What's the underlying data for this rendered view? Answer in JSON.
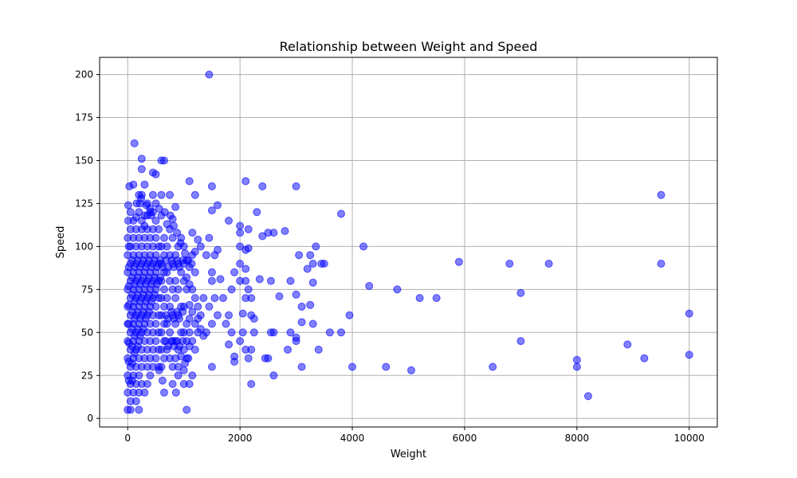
{
  "chart_data": {
    "type": "scatter",
    "title": "Relationship between Weight and Speed",
    "xlabel": "Weight",
    "ylabel": "Speed",
    "xlim": [
      -500,
      10500
    ],
    "ylim": [
      -5,
      210
    ],
    "xticks": [
      0,
      2000,
      4000,
      6000,
      8000,
      10000
    ],
    "yticks": [
      0,
      25,
      50,
      75,
      100,
      125,
      150,
      175,
      200
    ],
    "grid": true,
    "marker_color": "#0000ff",
    "marker_alpha": 0.5,
    "points": [
      [
        1450,
        200
      ],
      [
        120,
        160
      ],
      [
        250,
        151
      ],
      [
        600,
        150
      ],
      [
        650,
        150
      ],
      [
        250,
        145
      ],
      [
        450,
        143
      ],
      [
        500,
        142
      ],
      [
        1100,
        138
      ],
      [
        2100,
        138
      ],
      [
        30,
        135
      ],
      [
        1500,
        135
      ],
      [
        2400,
        135
      ],
      [
        3000,
        135
      ],
      [
        100,
        136
      ],
      [
        300,
        136
      ],
      [
        200,
        130
      ],
      [
        250,
        130
      ],
      [
        450,
        130
      ],
      [
        600,
        130
      ],
      [
        750,
        130
      ],
      [
        1200,
        130
      ],
      [
        9500,
        130
      ],
      [
        220,
        125
      ],
      [
        350,
        125
      ],
      [
        500,
        125
      ],
      [
        1600,
        124
      ],
      [
        10,
        124
      ],
      [
        850,
        123
      ],
      [
        1500,
        121
      ],
      [
        2300,
        120
      ],
      [
        3800,
        119
      ],
      [
        150,
        117
      ],
      [
        300,
        118
      ],
      [
        400,
        120
      ],
      [
        600,
        118
      ],
      [
        800,
        116
      ],
      [
        1800,
        115
      ],
      [
        10,
        115
      ],
      [
        700,
        113
      ],
      [
        2000,
        112
      ],
      [
        2150,
        110
      ],
      [
        2500,
        108
      ],
      [
        2600,
        108
      ],
      [
        2800,
        109
      ],
      [
        1150,
        108
      ],
      [
        2000,
        108
      ],
      [
        2400,
        106
      ],
      [
        1450,
        105
      ],
      [
        4200,
        100
      ],
      [
        3350,
        100
      ],
      [
        2000,
        100
      ],
      [
        2100,
        98
      ],
      [
        2150,
        99
      ],
      [
        1600,
        98
      ],
      [
        1550,
        95
      ],
      [
        1400,
        95
      ],
      [
        3050,
        95
      ],
      [
        3250,
        95
      ],
      [
        3300,
        90
      ],
      [
        3450,
        90
      ],
      [
        3500,
        90
      ],
      [
        5900,
        91
      ],
      [
        6800,
        90
      ],
      [
        7500,
        90
      ],
      [
        9500,
        90
      ],
      [
        2000,
        90
      ],
      [
        2100,
        87
      ],
      [
        3200,
        87
      ],
      [
        1900,
        85
      ],
      [
        1500,
        85
      ],
      [
        1650,
        81
      ],
      [
        1500,
        80
      ],
      [
        2000,
        80
      ],
      [
        2100,
        80
      ],
      [
        2350,
        81
      ],
      [
        2550,
        80
      ],
      [
        2900,
        80
      ],
      [
        3300,
        79
      ],
      [
        4300,
        77
      ],
      [
        4800,
        75
      ],
      [
        1850,
        75
      ],
      [
        2150,
        75
      ],
      [
        3000,
        72
      ],
      [
        7000,
        73
      ],
      [
        5200,
        70
      ],
      [
        5500,
        70
      ],
      [
        2700,
        71
      ],
      [
        2100,
        70
      ],
      [
        2200,
        70
      ],
      [
        1550,
        70
      ],
      [
        1700,
        70
      ],
      [
        1350,
        70
      ],
      [
        1250,
        65
      ],
      [
        3100,
        65
      ],
      [
        3250,
        66
      ],
      [
        2050,
        61
      ],
      [
        1450,
        65
      ],
      [
        2200,
        60
      ],
      [
        3950,
        60
      ],
      [
        1600,
        60
      ],
      [
        1800,
        60
      ],
      [
        2250,
        58
      ],
      [
        3100,
        56
      ],
      [
        3300,
        55
      ],
      [
        1500,
        55
      ],
      [
        1750,
        55
      ],
      [
        1850,
        50
      ],
      [
        2050,
        50
      ],
      [
        2250,
        50
      ],
      [
        2550,
        50
      ],
      [
        2600,
        50
      ],
      [
        2900,
        50
      ],
      [
        3600,
        50
      ],
      [
        3800,
        50
      ],
      [
        3000,
        47
      ],
      [
        3000,
        45
      ],
      [
        2000,
        45
      ],
      [
        1800,
        43
      ],
      [
        7000,
        45
      ],
      [
        8900,
        43
      ],
      [
        2850,
        40
      ],
      [
        2100,
        40
      ],
      [
        2200,
        40
      ],
      [
        3400,
        40
      ],
      [
        1900,
        36
      ],
      [
        2150,
        35
      ],
      [
        2450,
        35
      ],
      [
        2500,
        35
      ],
      [
        1900,
        33
      ],
      [
        9200,
        35
      ],
      [
        8000,
        34
      ],
      [
        1500,
        30
      ],
      [
        3100,
        30
      ],
      [
        4000,
        30
      ],
      [
        4600,
        30
      ],
      [
        5050,
        28
      ],
      [
        6500,
        30
      ],
      [
        8000,
        30
      ],
      [
        2600,
        25
      ],
      [
        2200,
        20
      ],
      [
        8200,
        13
      ],
      [
        10000,
        61
      ],
      [
        10000,
        37
      ],
      [
        1050,
        5
      ],
      [
        50,
        5
      ],
      [
        200,
        5
      ],
      [
        1100,
        20
      ],
      [
        1150,
        25
      ],
      [
        800,
        20
      ],
      [
        650,
        15
      ],
      [
        1000,
        20
      ],
      [
        1000,
        28
      ],
      [
        1050,
        35
      ],
      [
        900,
        30
      ],
      [
        950,
        36
      ],
      [
        1000,
        40
      ],
      [
        1100,
        42
      ],
      [
        1150,
        45
      ],
      [
        1200,
        40
      ],
      [
        1050,
        45
      ],
      [
        1000,
        50
      ],
      [
        1100,
        50
      ],
      [
        1200,
        55
      ],
      [
        1250,
        50
      ],
      [
        1300,
        52
      ],
      [
        1350,
        48
      ],
      [
        1400,
        50
      ],
      [
        1050,
        55
      ],
      [
        1100,
        58
      ],
      [
        1150,
        62
      ],
      [
        1250,
        58
      ],
      [
        1300,
        60
      ],
      [
        1000,
        65
      ],
      [
        1100,
        66
      ],
      [
        1200,
        70
      ],
      [
        1050,
        75
      ],
      [
        1100,
        78
      ],
      [
        1150,
        75
      ],
      [
        1000,
        80
      ],
      [
        1050,
        82
      ],
      [
        1200,
        85
      ],
      [
        1100,
        88
      ],
      [
        1000,
        90
      ],
      [
        1050,
        92
      ],
      [
        1150,
        95
      ],
      [
        1200,
        97
      ],
      [
        1300,
        100
      ],
      [
        1250,
        104
      ],
      [
        1000,
        100
      ],
      [
        950,
        105
      ],
      [
        900,
        100
      ],
      [
        850,
        95
      ],
      [
        900,
        90
      ],
      [
        950,
        85
      ],
      [
        850,
        80
      ],
      [
        900,
        75
      ],
      [
        850,
        70
      ],
      [
        950,
        65
      ],
      [
        900,
        60
      ],
      [
        850,
        55
      ],
      [
        950,
        50
      ],
      [
        850,
        45
      ],
      [
        900,
        40
      ],
      [
        850,
        35
      ],
      [
        800,
        30
      ],
      [
        900,
        25
      ],
      [
        750,
        35
      ],
      [
        700,
        40
      ],
      [
        800,
        45
      ],
      [
        750,
        50
      ],
      [
        700,
        55
      ],
      [
        800,
        60
      ],
      [
        750,
        65
      ],
      [
        700,
        70
      ],
      [
        800,
        75
      ],
      [
        750,
        80
      ],
      [
        700,
        85
      ],
      [
        800,
        90
      ],
      [
        750,
        95
      ],
      [
        700,
        100
      ],
      [
        800,
        105
      ],
      [
        750,
        110
      ],
      [
        650,
        105
      ],
      [
        600,
        100
      ],
      [
        650,
        95
      ],
      [
        600,
        90
      ],
      [
        650,
        85
      ],
      [
        600,
        80
      ],
      [
        650,
        75
      ],
      [
        600,
        70
      ],
      [
        650,
        65
      ],
      [
        600,
        60
      ],
      [
        650,
        55
      ],
      [
        600,
        50
      ],
      [
        650,
        45
      ],
      [
        600,
        40
      ],
      [
        650,
        35
      ],
      [
        600,
        30
      ],
      [
        550,
        30
      ],
      [
        500,
        35
      ],
      [
        550,
        40
      ],
      [
        500,
        45
      ],
      [
        550,
        50
      ],
      [
        500,
        55
      ],
      [
        550,
        60
      ],
      [
        500,
        65
      ],
      [
        550,
        70
      ],
      [
        500,
        75
      ],
      [
        550,
        80
      ],
      [
        500,
        85
      ],
      [
        550,
        90
      ],
      [
        500,
        95
      ],
      [
        550,
        100
      ],
      [
        500,
        105
      ],
      [
        550,
        110
      ],
      [
        500,
        115
      ],
      [
        450,
        120
      ],
      [
        400,
        122
      ],
      [
        350,
        118
      ],
      [
        300,
        112
      ],
      [
        450,
        110
      ],
      [
        400,
        105
      ],
      [
        450,
        100
      ],
      [
        400,
        95
      ],
      [
        450,
        90
      ],
      [
        400,
        85
      ],
      [
        450,
        80
      ],
      [
        400,
        75
      ],
      [
        450,
        70
      ],
      [
        400,
        65
      ],
      [
        450,
        60
      ],
      [
        400,
        55
      ],
      [
        450,
        50
      ],
      [
        400,
        45
      ],
      [
        450,
        40
      ],
      [
        400,
        35
      ],
      [
        450,
        30
      ],
      [
        400,
        25
      ],
      [
        350,
        20
      ],
      [
        300,
        15
      ],
      [
        350,
        30
      ],
      [
        300,
        35
      ],
      [
        350,
        40
      ],
      [
        300,
        45
      ],
      [
        350,
        50
      ],
      [
        300,
        55
      ],
      [
        350,
        60
      ],
      [
        300,
        65
      ],
      [
        350,
        70
      ],
      [
        300,
        75
      ],
      [
        350,
        80
      ],
      [
        300,
        85
      ],
      [
        350,
        90
      ],
      [
        300,
        95
      ],
      [
        350,
        100
      ],
      [
        300,
        105
      ],
      [
        350,
        110
      ],
      [
        250,
        115
      ],
      [
        200,
        120
      ],
      [
        250,
        110
      ],
      [
        200,
        105
      ],
      [
        250,
        100
      ],
      [
        200,
        95
      ],
      [
        250,
        90
      ],
      [
        200,
        85
      ],
      [
        250,
        80
      ],
      [
        200,
        75
      ],
      [
        250,
        70
      ],
      [
        200,
        65
      ],
      [
        250,
        60
      ],
      [
        200,
        55
      ],
      [
        250,
        50
      ],
      [
        200,
        45
      ],
      [
        250,
        40
      ],
      [
        200,
        35
      ],
      [
        250,
        30
      ],
      [
        200,
        25
      ],
      [
        250,
        20
      ],
      [
        200,
        15
      ],
      [
        150,
        10
      ],
      [
        100,
        15
      ],
      [
        150,
        20
      ],
      [
        100,
        25
      ],
      [
        150,
        30
      ],
      [
        100,
        35
      ],
      [
        150,
        40
      ],
      [
        100,
        45
      ],
      [
        150,
        50
      ],
      [
        100,
        55
      ],
      [
        150,
        60
      ],
      [
        100,
        65
      ],
      [
        150,
        70
      ],
      [
        100,
        75
      ],
      [
        150,
        80
      ],
      [
        100,
        85
      ],
      [
        150,
        90
      ],
      [
        100,
        95
      ],
      [
        150,
        100
      ],
      [
        100,
        105
      ],
      [
        150,
        110
      ],
      [
        100,
        115
      ],
      [
        50,
        120
      ],
      [
        50,
        110
      ],
      [
        0,
        105
      ],
      [
        50,
        100
      ],
      [
        0,
        95
      ],
      [
        50,
        90
      ],
      [
        0,
        85
      ],
      [
        50,
        80
      ],
      [
        0,
        75
      ],
      [
        50,
        70
      ],
      [
        0,
        65
      ],
      [
        50,
        60
      ],
      [
        0,
        55
      ],
      [
        50,
        50
      ],
      [
        0,
        45
      ],
      [
        50,
        40
      ],
      [
        0,
        35
      ],
      [
        50,
        30
      ],
      [
        0,
        25
      ],
      [
        50,
        20
      ],
      [
        0,
        15
      ],
      [
        50,
        10
      ],
      [
        0,
        5
      ],
      [
        20,
        100
      ],
      [
        20,
        88
      ],
      [
        20,
        77
      ],
      [
        20,
        66
      ],
      [
        20,
        55
      ],
      [
        20,
        44
      ],
      [
        20,
        33
      ],
      [
        20,
        22
      ],
      [
        80,
        92
      ],
      [
        80,
        82
      ],
      [
        80,
        72
      ],
      [
        80,
        62
      ],
      [
        80,
        52
      ],
      [
        80,
        42
      ],
      [
        80,
        32
      ],
      [
        80,
        22
      ],
      [
        120,
        88
      ],
      [
        120,
        78
      ],
      [
        120,
        68
      ],
      [
        120,
        58
      ],
      [
        120,
        48
      ],
      [
        120,
        38
      ],
      [
        180,
        92
      ],
      [
        180,
        82
      ],
      [
        180,
        72
      ],
      [
        180,
        62
      ],
      [
        180,
        52
      ],
      [
        180,
        42
      ],
      [
        220,
        88
      ],
      [
        220,
        78
      ],
      [
        220,
        68
      ],
      [
        220,
        58
      ],
      [
        220,
        48
      ],
      [
        280,
        92
      ],
      [
        280,
        82
      ],
      [
        280,
        72
      ],
      [
        280,
        62
      ],
      [
        280,
        52
      ],
      [
        320,
        88
      ],
      [
        320,
        78
      ],
      [
        320,
        68
      ],
      [
        320,
        58
      ],
      [
        380,
        92
      ],
      [
        380,
        82
      ],
      [
        380,
        72
      ],
      [
        380,
        62
      ],
      [
        420,
        88
      ],
      [
        420,
        78
      ],
      [
        420,
        68
      ],
      [
        480,
        92
      ],
      [
        480,
        82
      ],
      [
        480,
        72
      ],
      [
        520,
        88
      ],
      [
        520,
        78
      ],
      [
        580,
        92
      ],
      [
        580,
        82
      ],
      [
        620,
        88
      ],
      [
        680,
        92
      ],
      [
        720,
        88
      ],
      [
        780,
        92
      ],
      [
        820,
        88
      ],
      [
        880,
        92
      ],
      [
        920,
        88
      ],
      [
        980,
        92
      ],
      [
        680,
        60
      ],
      [
        720,
        58
      ],
      [
        780,
        62
      ],
      [
        820,
        58
      ],
      [
        880,
        62
      ],
      [
        920,
        58
      ],
      [
        980,
        62
      ],
      [
        680,
        45
      ],
      [
        720,
        42
      ],
      [
        780,
        45
      ],
      [
        820,
        42
      ],
      [
        880,
        45
      ],
      [
        920,
        42
      ],
      [
        980,
        45
      ],
      [
        1020,
        32
      ],
      [
        1080,
        35
      ],
      [
        860,
        15
      ],
      [
        620,
        22
      ],
      [
        560,
        28
      ],
      [
        160,
        125
      ],
      [
        240,
        128
      ],
      [
        330,
        124
      ],
      [
        420,
        118
      ],
      [
        560,
        122
      ],
      [
        660,
        120
      ],
      [
        760,
        118
      ],
      [
        820,
        112
      ],
      [
        880,
        108
      ],
      [
        940,
        102
      ],
      [
        1020,
        96
      ],
      [
        1080,
        92
      ],
      [
        1140,
        90
      ]
    ]
  }
}
